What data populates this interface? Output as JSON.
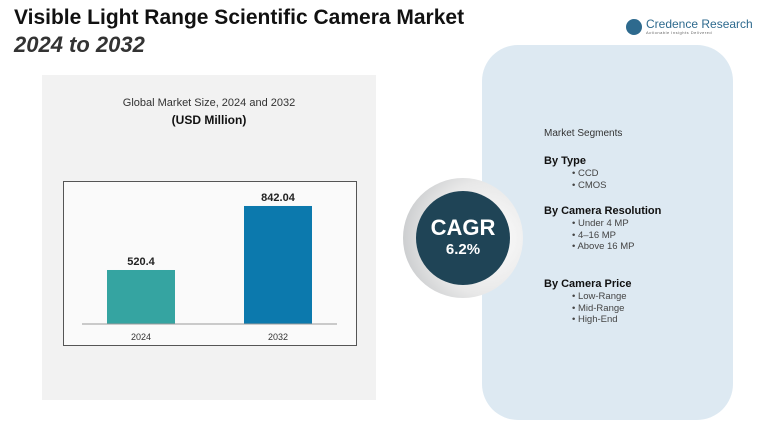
{
  "title": "Visible Light Range Scientific Camera Market",
  "subtitle": "2024 to 2032",
  "logo": {
    "name": "Credence Research",
    "tagline": "Actionable Insights Delivered"
  },
  "chart_data": {
    "type": "bar",
    "title": "Global Market Size, 2024 and 2032",
    "unit": "(USD Million)",
    "categories": [
      "2024",
      "2032"
    ],
    "values": [
      520.4,
      842.04
    ],
    "value_labels": [
      "520.4",
      "842.04"
    ],
    "colors": [
      "#35a4a1",
      "#0c79ad"
    ]
  },
  "cagr": {
    "label": "CAGR",
    "value": "6.2%"
  },
  "segments": {
    "heading": "Market Segments",
    "groups": [
      {
        "title": "By Type",
        "items": [
          "CCD",
          "CMOS"
        ]
      },
      {
        "title": "By Camera Resolution",
        "items": [
          "Under 4 MP",
          "4–16 MP",
          "Above 16 MP"
        ]
      },
      {
        "title": "By Camera Price",
        "items": [
          "Low-Range",
          "Mid-Range",
          "High-End"
        ]
      }
    ]
  }
}
